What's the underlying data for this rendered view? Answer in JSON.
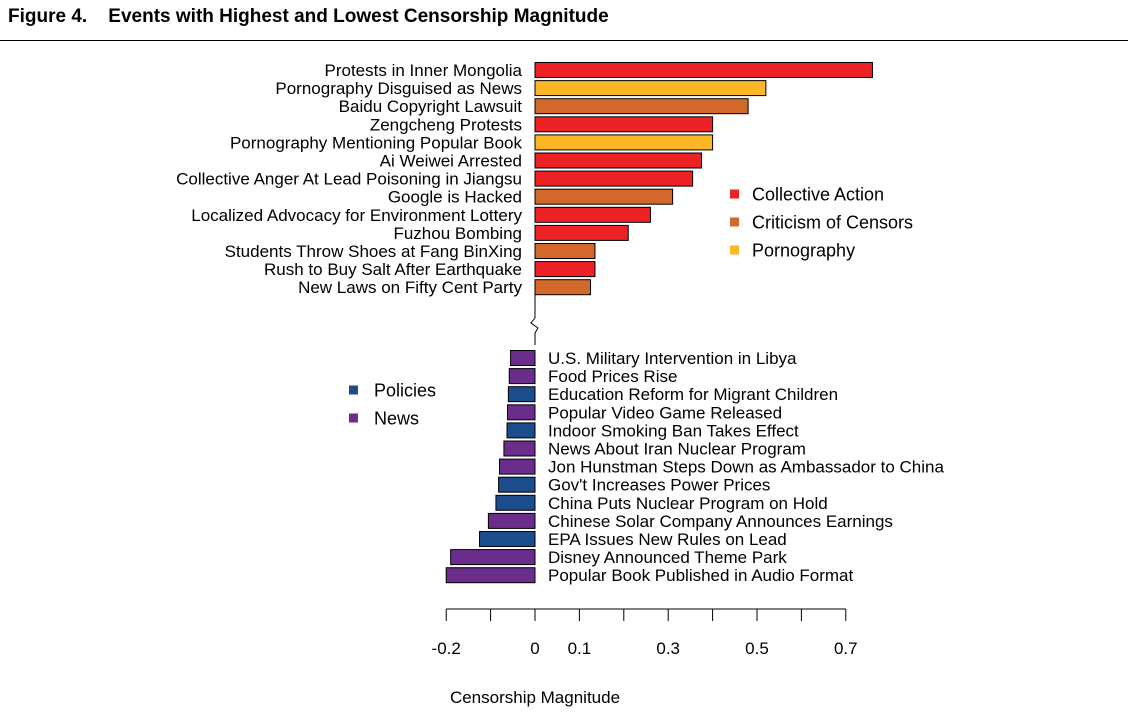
{
  "figure": {
    "title": "Figure 4.    Events with Highest and Lowest Censorship Magnitude"
  },
  "colors": {
    "Collective Action": "#ec2227",
    "Criticism of Censors": "#d2692a",
    "Pornography": "#fbb725",
    "Policies": "#1b4c8c",
    "News": "#6a2d8c"
  },
  "chart_data": {
    "type": "bar",
    "orientation": "horizontal",
    "xlabel": "Censorship Magnitude",
    "ylabel": "",
    "xlim": [
      -0.2,
      0.7
    ],
    "xticks": [
      -0.2,
      -0.1,
      0,
      0.1,
      0.2,
      0.3,
      0.4,
      0.5,
      0.6,
      0.7
    ],
    "xtick_labels": [
      "-0.2",
      "",
      "0",
      "0.1",
      "",
      "0.3",
      "",
      "0.5",
      "",
      "0.7"
    ],
    "axis_break": true,
    "grid": false,
    "legend_top": [
      "Collective Action",
      "Criticism of Censors",
      "Pornography"
    ],
    "legend_bottom": [
      "Policies",
      "News"
    ],
    "top_events": [
      {
        "label": "Protests in Inner Mongolia",
        "value": 0.76,
        "category": "Collective Action"
      },
      {
        "label": "Pornography Disguised as News",
        "value": 0.52,
        "category": "Pornography"
      },
      {
        "label": "Baidu Copyright Lawsuit",
        "value": 0.48,
        "category": "Criticism of Censors"
      },
      {
        "label": "Zengcheng Protests",
        "value": 0.4,
        "category": "Collective Action"
      },
      {
        "label": "Pornography Mentioning Popular Book",
        "value": 0.4,
        "category": "Pornography"
      },
      {
        "label": "Ai Weiwei Arrested",
        "value": 0.375,
        "category": "Collective Action"
      },
      {
        "label": "Collective Anger At Lead Poisoning in Jiangsu",
        "value": 0.355,
        "category": "Collective Action"
      },
      {
        "label": "Google is Hacked",
        "value": 0.31,
        "category": "Criticism of Censors"
      },
      {
        "label": "Localized Advocacy for Environment Lottery",
        "value": 0.26,
        "category": "Collective Action"
      },
      {
        "label": "Fuzhou Bombing",
        "value": 0.21,
        "category": "Collective Action"
      },
      {
        "label": "Students Throw Shoes at Fang BinXing",
        "value": 0.135,
        "category": "Criticism of Censors"
      },
      {
        "label": "Rush to Buy Salt After Earthquake",
        "value": 0.135,
        "category": "Collective Action"
      },
      {
        "label": "New Laws on Fifty Cent Party",
        "value": 0.125,
        "category": "Criticism of Censors"
      }
    ],
    "bottom_events": [
      {
        "label": "U.S. Military Intervention in Libya",
        "value": -0.055,
        "category": "News"
      },
      {
        "label": "Food Prices Rise",
        "value": -0.058,
        "category": "News"
      },
      {
        "label": "Education Reform for Migrant Children",
        "value": -0.06,
        "category": "Policies"
      },
      {
        "label": "Popular Video Game Released",
        "value": -0.062,
        "category": "News"
      },
      {
        "label": "Indoor Smoking Ban Takes Effect",
        "value": -0.063,
        "category": "Policies"
      },
      {
        "label": "News About Iran Nuclear Program",
        "value": -0.07,
        "category": "News"
      },
      {
        "label": "Jon Hunstman Steps Down as Ambassador to China",
        "value": -0.08,
        "category": "News"
      },
      {
        "label": "Gov't Increases Power Prices",
        "value": -0.082,
        "category": "Policies"
      },
      {
        "label": "China Puts Nuclear Program on Hold",
        "value": -0.088,
        "category": "Policies"
      },
      {
        "label": "Chinese Solar Company Announces Earnings",
        "value": -0.105,
        "category": "News"
      },
      {
        "label": "EPA Issues New Rules on Lead",
        "value": -0.125,
        "category": "Policies"
      },
      {
        "label": "Disney Announced Theme Park",
        "value": -0.19,
        "category": "News"
      },
      {
        "label": "Popular Book Published in Audio Format",
        "value": -0.2,
        "category": "News"
      }
    ]
  }
}
